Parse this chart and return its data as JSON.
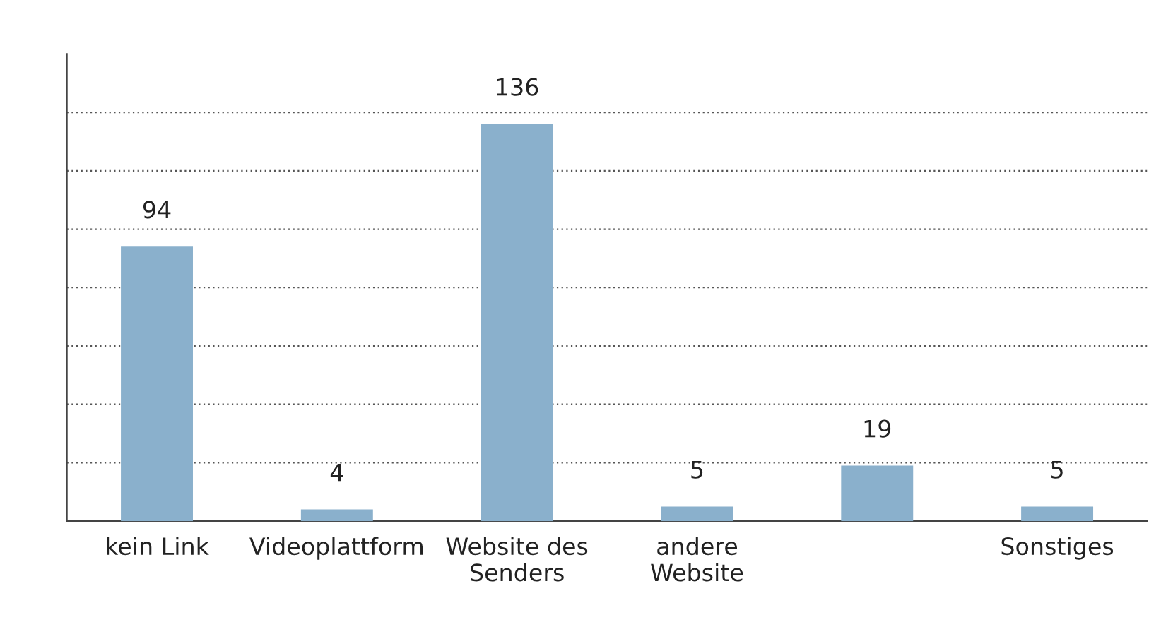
{
  "chart_data": {
    "type": "bar",
    "categories": [
      "kein Link",
      "Videoplattform",
      "Website des\nSenders",
      "andere\nWebsite",
      null,
      "Sonstiges"
    ],
    "values": [
      94,
      4,
      136,
      5,
      19,
      5
    ],
    "color": "#8ab0cc",
    "ylim": [
      0,
      160
    ],
    "yticks": [
      {
        "value": 20,
        "label": null
      },
      {
        "value": 40,
        "label": null
      },
      {
        "value": 60,
        "label": null
      },
      {
        "value": 80,
        "label": null
      },
      {
        "value": 100,
        "label": null
      },
      {
        "value": 120,
        "label": null
      },
      {
        "value": 140,
        "label": null
      }
    ],
    "grid": "y",
    "data_labels": true,
    "tick_labels": "x"
  }
}
